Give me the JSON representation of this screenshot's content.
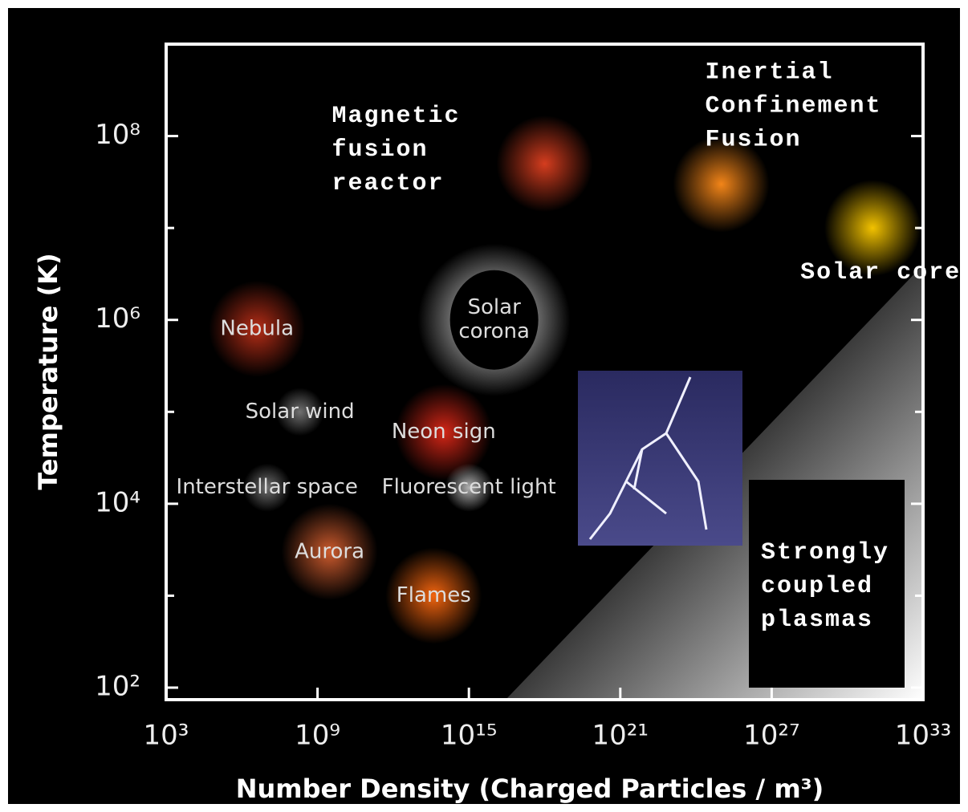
{
  "chart_data": {
    "type": "scatter",
    "xlabel": "Number Density (Charged Particles / m³)",
    "ylabel": "Temperature (K)",
    "log_x": true,
    "log_y": true,
    "xlim": [
      1000.0,
      1e+33
    ],
    "ylim": [
      100.0,
      1000000000.0
    ],
    "xticks": [
      {
        "value": 1000.0,
        "label": "10³"
      },
      {
        "value": 1000000000.0,
        "label": "10⁹"
      },
      {
        "value": 1000000000000000.0,
        "label": "10¹⁵"
      },
      {
        "value": 1e+21,
        "label": "10²¹"
      },
      {
        "value": 1e+27,
        "label": "10²⁷"
      },
      {
        "value": 1e+33,
        "label": "10³³"
      }
    ],
    "yticks": [
      {
        "value": 100.0,
        "label": "10²"
      },
      {
        "value": 10000.0,
        "label": "10⁴"
      },
      {
        "value": 1000000.0,
        "label": "10⁶"
      },
      {
        "value": 100000000.0,
        "label": "10⁸"
      }
    ],
    "minor_yticks": [
      1000.0,
      100000.0,
      10000000.0
    ],
    "labels": [
      [
        "Magnetic",
        "fusion",
        "reactor"
      ],
      [
        "Inertial",
        "Confinement",
        "Fusion"
      ],
      [
        "Solar core"
      ],
      [
        "Solar",
        "corona"
      ],
      [
        "Nebula"
      ],
      [
        "Solar wind"
      ],
      [
        "Neon sign"
      ],
      [
        "Fluorescent light"
      ],
      [
        "Interstellar space"
      ],
      [
        "Aurora"
      ],
      [
        "Flames"
      ]
    ],
    "x": [
      1e+18,
      1e+25,
      1e+31,
      1e+16,
      4000000.0,
      200000000.0,
      100000000000000.0,
      1000000000000000.0,
      10000000.0,
      3000000000.0,
      40000000000000.0
    ],
    "y": [
      50000000.0,
      30000000.0,
      10000000.0,
      1000000.0,
      800000.0,
      100000.0,
      60000.0,
      15000.0,
      15000.0,
      3000.0,
      1000.0
    ],
    "colors": [
      "#e04020",
      "#ff8c1a",
      "#ffcc00",
      "#ffffff",
      "#c03018",
      "#777777",
      "#e02818",
      "#bbbbbb",
      "#777777",
      "#d86030",
      "#ff6a10"
    ],
    "annotations": [
      [
        "Strongly",
        "coupled",
        "plasmas"
      ]
    ]
  }
}
